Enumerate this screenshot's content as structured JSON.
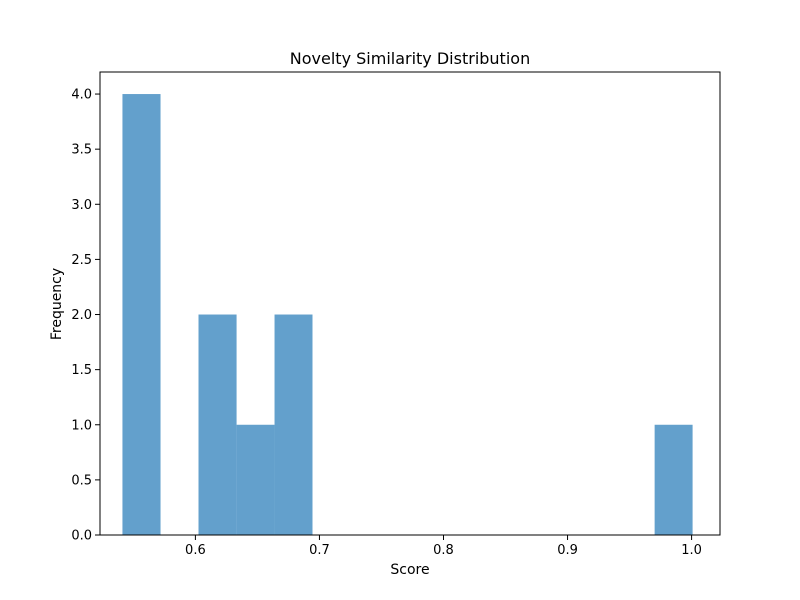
{
  "chart_data": {
    "type": "bar",
    "title": "Novelty Similarity Distribution",
    "xlabel": "Score",
    "ylabel": "Frequency",
    "xlim": [
      0.5231,
      1.0229
    ],
    "ylim": [
      0,
      4.2
    ],
    "xticks": [
      0.6,
      0.7,
      0.8,
      0.9,
      1.0
    ],
    "xtick_labels": [
      "0.6",
      "0.7",
      "0.8",
      "0.9",
      "1.0"
    ],
    "yticks": [
      0,
      0.5,
      1.0,
      1.5,
      2.0,
      2.5,
      3.0,
      3.5,
      4.0
    ],
    "ytick_labels": [
      "0.0",
      "0.5",
      "1.0",
      "1.5",
      "2.0",
      "2.5",
      "3.0",
      "3.5",
      "4.0"
    ],
    "bins": [
      {
        "x0": 0.5412,
        "x1": 0.5719,
        "count": 4
      },
      {
        "x0": 0.5719,
        "x1": 0.6025,
        "count": 0
      },
      {
        "x0": 0.6025,
        "x1": 0.6332,
        "count": 2
      },
      {
        "x0": 0.6332,
        "x1": 0.6638,
        "count": 1
      },
      {
        "x0": 0.6638,
        "x1": 0.6944,
        "count": 2
      },
      {
        "x0": 0.6944,
        "x1": 0.7251,
        "count": 0
      },
      {
        "x0": 0.7251,
        "x1": 0.7557,
        "count": 0
      },
      {
        "x0": 0.7557,
        "x1": 0.7864,
        "count": 0
      },
      {
        "x0": 0.7864,
        "x1": 0.817,
        "count": 0
      },
      {
        "x0": 0.817,
        "x1": 0.8476,
        "count": 0
      },
      {
        "x0": 0.8476,
        "x1": 0.8783,
        "count": 0
      },
      {
        "x0": 0.8783,
        "x1": 0.9089,
        "count": 0
      },
      {
        "x0": 0.9089,
        "x1": 0.9396,
        "count": 0
      },
      {
        "x0": 0.9396,
        "x1": 0.9702,
        "count": 0
      },
      {
        "x0": 0.9702,
        "x1": 1.0008,
        "count": 1
      }
    ],
    "bar_color": "#63a0cc",
    "grid": false
  }
}
